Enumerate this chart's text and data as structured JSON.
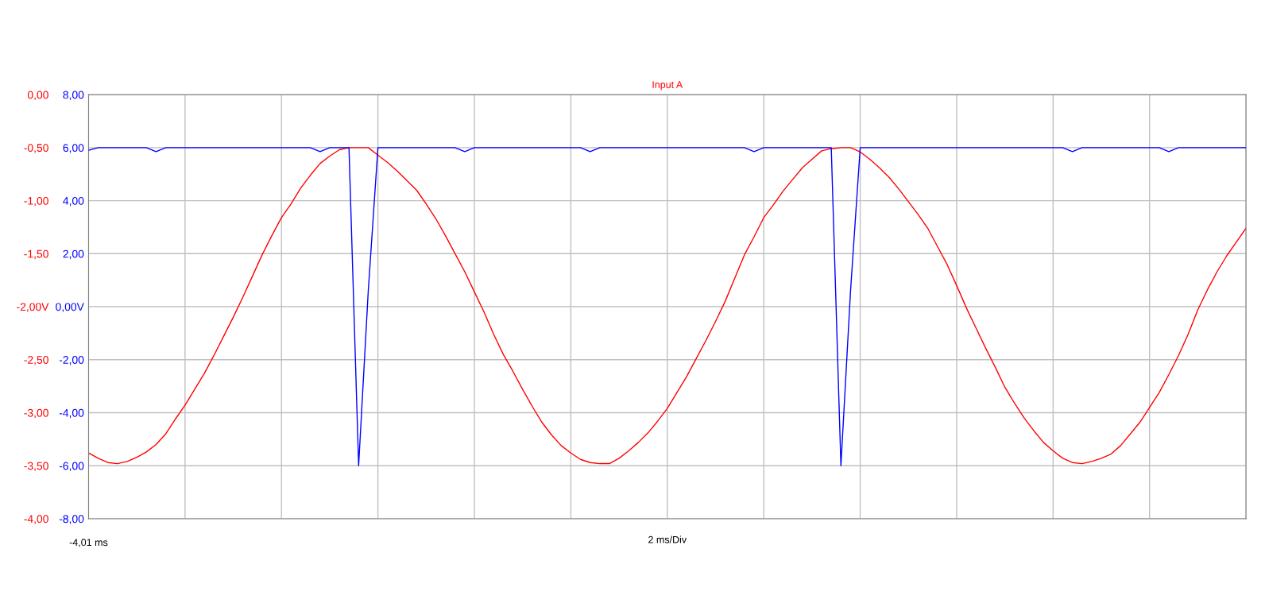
{
  "chart_data": {
    "type": "line",
    "title": "Input A",
    "xlabel": "2 ms/Div",
    "annotations": [
      "-4,01 ms"
    ],
    "categories": [
      null,
      null,
      null,
      null,
      null,
      null,
      null,
      null,
      null,
      null,
      null,
      null,
      null,
      null,
      null,
      null,
      null,
      null,
      null,
      null,
      null,
      null,
      null,
      null,
      null,
      null,
      null,
      null,
      null,
      null,
      null,
      null,
      null,
      null,
      null,
      null,
      null,
      null,
      null,
      null,
      null,
      null,
      null,
      null,
      null,
      null,
      null,
      null,
      null,
      null,
      null,
      null,
      null,
      null,
      null,
      null,
      null,
      null,
      null,
      null,
      null,
      null,
      null,
      null,
      null,
      null,
      null,
      null,
      null,
      null,
      null,
      null,
      null,
      null,
      null,
      null,
      null,
      null,
      null,
      null,
      null,
      null,
      null,
      null,
      null,
      null,
      null,
      null,
      null,
      null,
      null,
      null,
      null,
      null,
      null,
      null,
      null,
      null,
      null,
      null,
      null,
      null,
      null,
      null,
      null,
      null,
      null,
      null,
      null,
      null,
      null,
      null,
      null,
      null,
      null,
      null,
      null,
      null,
      null,
      null,
      null
    ],
    "ylim": [
      -4,
      0
    ],
    "yticks": [
      {
        "value": 0,
        "label": "0,00"
      },
      {
        "value": -0.5,
        "label": "-0,50"
      },
      {
        "value": -1,
        "label": "-1,00"
      },
      {
        "value": -1.5,
        "label": "-1,50"
      },
      {
        "value": -2,
        "label": "-2,00V"
      },
      {
        "value": -2.5,
        "label": "-2,50"
      },
      {
        "value": -3,
        "label": "-3,00"
      },
      {
        "value": -3.5,
        "label": "-3,50"
      },
      {
        "value": -4,
        "label": "-4,00"
      }
    ],
    "y2lim": [
      -8,
      8
    ],
    "y2ticks": [
      {
        "value": 8,
        "label": "8,00"
      },
      {
        "value": 6,
        "label": "6,00"
      },
      {
        "value": 4,
        "label": "4,00"
      },
      {
        "value": 2,
        "label": "2,00"
      },
      {
        "value": 0,
        "label": "0,00V"
      },
      {
        "value": -2,
        "label": "-2,00"
      },
      {
        "value": -4,
        "label": "-4,00"
      },
      {
        "value": -6,
        "label": "-6,00"
      },
      {
        "value": -8,
        "label": "-8,00"
      }
    ],
    "grid": true,
    "series": [
      {
        "color": "#ff0000",
        "values": [
          -3.38,
          -3.43,
          -3.47,
          -3.48,
          -3.46,
          -3.42,
          -3.37,
          -3.3,
          -3.2,
          -3.06,
          -2.93,
          -2.78,
          -2.63,
          -2.46,
          -2.28,
          -2.1,
          -1.91,
          -1.71,
          -1.51,
          -1.33,
          -1.16,
          -1.03,
          -0.88,
          -0.76,
          -0.65,
          -0.58,
          -0.52,
          -0.5,
          -0.5,
          -0.5,
          -0.57,
          -0.64,
          -0.72,
          -0.81,
          -0.9,
          -1.03,
          -1.17,
          -1.33,
          -1.5,
          -1.67,
          -1.86,
          -2.05,
          -2.26,
          -2.45,
          -2.61,
          -2.78,
          -2.94,
          -3.09,
          -3.21,
          -3.31,
          -3.38,
          -3.44,
          -3.47,
          -3.48,
          -3.48,
          -3.43,
          -3.36,
          -3.28,
          -3.19,
          -3.08,
          -2.96,
          -2.81,
          -2.66,
          -2.49,
          -2.32,
          -2.14,
          -1.95,
          -1.73,
          -1.51,
          -1.34,
          -1.16,
          -1.04,
          -0.91,
          -0.8,
          -0.69,
          -0.61,
          -0.53,
          -0.51,
          -0.5,
          -0.5,
          -0.54,
          -0.61,
          -0.69,
          -0.78,
          -0.89,
          -1.01,
          -1.13,
          -1.26,
          -1.43,
          -1.6,
          -1.8,
          -2.01,
          -2.2,
          -2.39,
          -2.57,
          -2.76,
          -2.91,
          -3.05,
          -3.17,
          -3.28,
          -3.36,
          -3.43,
          -3.47,
          -3.48,
          -3.46,
          -3.43,
          -3.39,
          -3.31,
          -3.2,
          -3.09,
          -2.95,
          -2.81,
          -2.64,
          -2.46,
          -2.26,
          -2.03,
          -1.84,
          -1.67,
          -1.52,
          -1.39,
          -1.26
        ]
      },
      {
        "color": "#0000ff",
        "axis": "y2",
        "values": [
          5.9,
          6.0,
          6.0,
          6.0,
          6.0,
          6.0,
          6.0,
          5.85,
          6.0,
          6.0,
          6.0,
          6.0,
          6.0,
          6.0,
          6.0,
          6.0,
          6.0,
          6.0,
          6.0,
          6.0,
          6.0,
          6.0,
          6.0,
          6.0,
          5.85,
          6.0,
          6.0,
          6.0,
          -6.0,
          0.6,
          6.0,
          6.0,
          6.0,
          6.0,
          6.0,
          6.0,
          6.0,
          6.0,
          6.0,
          5.85,
          6.0,
          6.0,
          6.0,
          6.0,
          6.0,
          6.0,
          6.0,
          6.0,
          6.0,
          6.0,
          6.0,
          6.0,
          5.85,
          6.0,
          6.0,
          6.0,
          6.0,
          6.0,
          6.0,
          6.0,
          6.0,
          6.0,
          6.0,
          6.0,
          6.0,
          6.0,
          6.0,
          6.0,
          6.0,
          5.85,
          6.0,
          6.0,
          6.0,
          6.0,
          6.0,
          6.0,
          6.0,
          6.0,
          -6.0,
          0.6,
          6.0,
          6.0,
          6.0,
          6.0,
          6.0,
          6.0,
          6.0,
          6.0,
          6.0,
          6.0,
          6.0,
          6.0,
          6.0,
          6.0,
          6.0,
          6.0,
          6.0,
          6.0,
          6.0,
          6.0,
          6.0,
          6.0,
          5.85,
          6.0,
          6.0,
          6.0,
          6.0,
          6.0,
          6.0,
          6.0,
          6.0,
          6.0,
          5.85,
          6.0,
          6.0,
          6.0,
          6.0,
          6.0,
          6.0,
          6.0,
          6.0
        ]
      }
    ]
  }
}
